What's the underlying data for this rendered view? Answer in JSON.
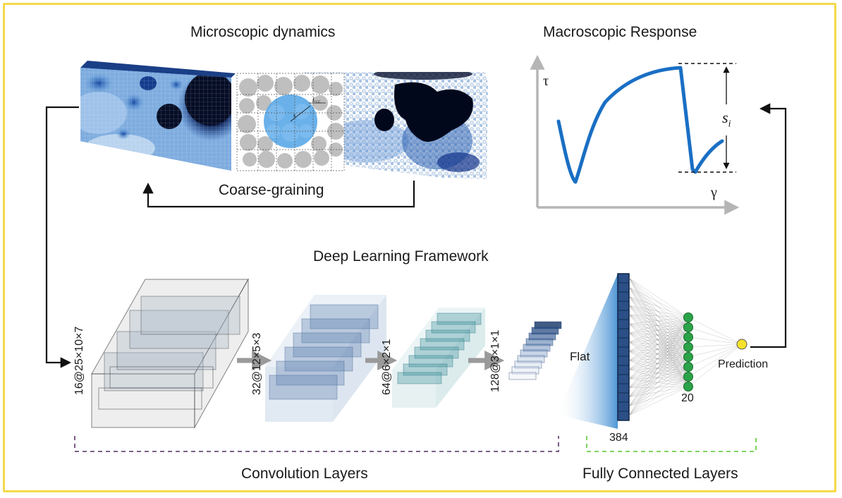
{
  "titles": {
    "micro": "Microscopic dynamics",
    "macro": "Macroscopic Response",
    "deep": "Deep Learning Framework",
    "coarse": "Coarse-graining",
    "conv": "Convolution Layers",
    "fc": "Fully Connected Layers"
  },
  "graph": {
    "y_axis": "τ",
    "x_axis": "γ",
    "drop": "s",
    "drop_sub": "i"
  },
  "inset": {
    "lcg": "L",
    "lcg_sub": "CG",
    "s": "s"
  },
  "layers": {
    "l1": "16@25×10×7",
    "l2": "32@12×5×3",
    "l3": "64@6×2×1",
    "l4": "128@3×1×1",
    "flat": "Flat",
    "n384": "384",
    "n20": "20",
    "prediction": "Prediction"
  },
  "colors": {
    "frame": "#f5d94a",
    "curve": "#1a6fc4",
    "axis": "#b5b5b5",
    "conv_bracket": "#6b4a7a",
    "fc_bracket": "#6fcf4a",
    "node": "#2aa348",
    "prediction_node": "#f5e22a"
  }
}
